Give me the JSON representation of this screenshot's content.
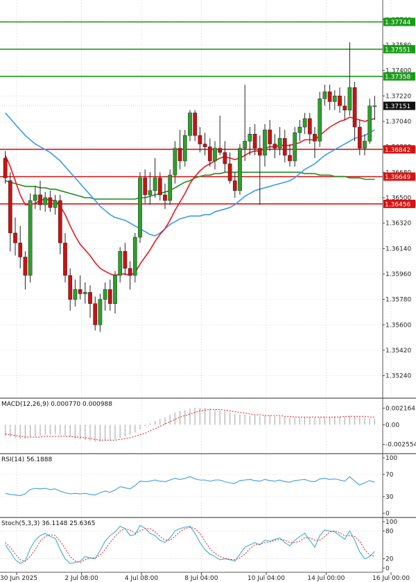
{
  "colors": {
    "up": "#2ca02c",
    "down": "#cc1111",
    "ma_fast": "#e8161c",
    "ma_mid": "#3a9ae8",
    "ma_slow": "#1f8a1f",
    "hline_green": "#1b9c1b",
    "hline_red": "#dd1111",
    "macd_hist": "#b0b0b0",
    "macd_signal": "#e8161c",
    "rsi": "#3a9ae8",
    "stoch_k": "#3ab0d0",
    "stoch_d": "#e8161c",
    "grid": "#d8d8d8",
    "panel_border": "#555555",
    "last_price_bg": "#111111"
  },
  "chart_data": [
    {
      "type": "candlestick",
      "price_axis": {
        "range": [
          1.3513,
          1.3785
        ],
        "ticks": [
          "1.37760",
          "1.37580",
          "1.37400",
          "1.37220",
          "1.37040",
          "1.36860",
          "1.36680",
          "1.36500",
          "1.36320",
          "1.36140",
          "1.35960",
          "1.35780",
          "1.35600",
          "1.35420",
          "1.35240"
        ]
      },
      "time_axis": {
        "labels": [
          "30 Jun 2025",
          "2 Jul 08:00",
          "4 Jul 08:00",
          "8 Jul 04:00",
          "10 Jul 04:00",
          "14 Jul 00:00",
          "16 Jul 00:00"
        ],
        "label_bars": [
          0,
          13,
          25,
          37,
          50,
          62,
          75
        ]
      },
      "last_price": "1.37151",
      "levels": [
        {
          "label": "1.37744",
          "value": 1.37744,
          "color": "green"
        },
        {
          "label": "1.37551",
          "value": 1.37551,
          "color": "green"
        },
        {
          "label": "1.37358",
          "value": 1.37358,
          "color": "green"
        },
        {
          "label": "1.36842",
          "value": 1.36842,
          "color": "red"
        },
        {
          "label": "1.36649",
          "value": 1.36649,
          "color": "red"
        },
        {
          "label": "1.36456",
          "value": 1.36456,
          "color": "red"
        }
      ],
      "candles": [
        [
          1.3678,
          1.3683,
          1.366,
          1.3664
        ],
        [
          1.3662,
          1.3668,
          1.3612,
          1.3625
        ],
        [
          1.3625,
          1.3636,
          1.3609,
          1.3618
        ],
        [
          1.3618,
          1.363,
          1.36,
          1.3608
        ],
        [
          1.3608,
          1.3612,
          1.3585,
          1.3595
        ],
        [
          1.3595,
          1.3653,
          1.359,
          1.3648
        ],
        [
          1.3648,
          1.3658,
          1.3642,
          1.3652
        ],
        [
          1.3652,
          1.3662,
          1.3641,
          1.3645
        ],
        [
          1.3645,
          1.3654,
          1.364,
          1.365
        ],
        [
          1.365,
          1.3655,
          1.364,
          1.3643
        ],
        [
          1.3643,
          1.3652,
          1.3638,
          1.3648
        ],
        [
          1.3648,
          1.3652,
          1.361,
          1.3618
        ],
        [
          1.3618,
          1.3625,
          1.359,
          1.3595
        ],
        [
          1.3595,
          1.36,
          1.357,
          1.3578
        ],
        [
          1.3578,
          1.3592,
          1.3573,
          1.3585
        ],
        [
          1.3585,
          1.3595,
          1.3578,
          1.3582
        ],
        [
          1.3582,
          1.359,
          1.3575,
          1.3583
        ],
        [
          1.3583,
          1.3588,
          1.3565,
          1.3575
        ],
        [
          1.3575,
          1.358,
          1.3556,
          1.356
        ],
        [
          1.356,
          1.3582,
          1.3555,
          1.3578
        ],
        [
          1.3578,
          1.359,
          1.357,
          1.3585
        ],
        [
          1.3585,
          1.3592,
          1.357,
          1.3575
        ],
        [
          1.3575,
          1.3598,
          1.3568,
          1.3595
        ],
        [
          1.3595,
          1.3615,
          1.359,
          1.3612
        ],
        [
          1.3612,
          1.3618,
          1.3595,
          1.36
        ],
        [
          1.36,
          1.3605,
          1.3585,
          1.3595
        ],
        [
          1.3595,
          1.3625,
          1.359,
          1.3622
        ],
        [
          1.3622,
          1.3668,
          1.3618,
          1.3664
        ],
        [
          1.3664,
          1.367,
          1.3646,
          1.3652
        ],
        [
          1.3652,
          1.3668,
          1.3645,
          1.3655
        ],
        [
          1.3655,
          1.3678,
          1.365,
          1.3664
        ],
        [
          1.3664,
          1.3668,
          1.3648,
          1.3652
        ],
        [
          1.3652,
          1.366,
          1.3642,
          1.3648
        ],
        [
          1.3648,
          1.367,
          1.3645,
          1.3666
        ],
        [
          1.3666,
          1.369,
          1.366,
          1.3685
        ],
        [
          1.3685,
          1.3698,
          1.367,
          1.3676
        ],
        [
          1.3676,
          1.3698,
          1.3672,
          1.3694
        ],
        [
          1.3694,
          1.3712,
          1.369,
          1.371
        ],
        [
          1.371,
          1.3712,
          1.369,
          1.3694
        ],
        [
          1.3694,
          1.37,
          1.3682,
          1.3688
        ],
        [
          1.3688,
          1.3696,
          1.368,
          1.3686
        ],
        [
          1.3686,
          1.3692,
          1.3672,
          1.3676
        ],
        [
          1.3676,
          1.369,
          1.367,
          1.3685
        ],
        [
          1.3685,
          1.3708,
          1.368,
          1.3682
        ],
        [
          1.3682,
          1.369,
          1.3668,
          1.3674
        ],
        [
          1.3674,
          1.3682,
          1.366,
          1.3662
        ],
        [
          1.3662,
          1.3668,
          1.365,
          1.3655
        ],
        [
          1.3655,
          1.3688,
          1.3652,
          1.3685
        ],
        [
          1.3685,
          1.373,
          1.3676,
          1.369
        ],
        [
          1.369,
          1.37,
          1.368,
          1.3695
        ],
        [
          1.3695,
          1.3702,
          1.368,
          1.3685
        ],
        [
          1.3685,
          1.3694,
          1.3645,
          1.368
        ],
        [
          1.368,
          1.3702,
          1.3672,
          1.3698
        ],
        [
          1.3698,
          1.3705,
          1.3683,
          1.3688
        ],
        [
          1.3688,
          1.3695,
          1.3678,
          1.3685
        ],
        [
          1.3685,
          1.37,
          1.368,
          1.3692
        ],
        [
          1.3692,
          1.3698,
          1.3675,
          1.368
        ],
        [
          1.368,
          1.3688,
          1.3672,
          1.3676
        ],
        [
          1.3676,
          1.37,
          1.3672,
          1.3696
        ],
        [
          1.3696,
          1.3705,
          1.369,
          1.37
        ],
        [
          1.37,
          1.371,
          1.3695,
          1.3706
        ],
        [
          1.3706,
          1.371,
          1.3688,
          1.3695
        ],
        [
          1.3695,
          1.37,
          1.3678,
          1.369
        ],
        [
          1.369,
          1.3725,
          1.3686,
          1.372
        ],
        [
          1.372,
          1.373,
          1.3715,
          1.3725
        ],
        [
          1.3725,
          1.373,
          1.3712,
          1.3718
        ],
        [
          1.3718,
          1.3726,
          1.3712,
          1.3722
        ],
        [
          1.3722,
          1.3728,
          1.371,
          1.3715
        ],
        [
          1.3715,
          1.3722,
          1.3705,
          1.3712
        ],
        [
          1.3712,
          1.376,
          1.3708,
          1.3728
        ],
        [
          1.3728,
          1.3732,
          1.369,
          1.37
        ],
        [
          1.37,
          1.3705,
          1.368,
          1.3685
        ],
        [
          1.3685,
          1.3695,
          1.368,
          1.369
        ],
        [
          1.369,
          1.372,
          1.3688,
          1.3715
        ],
        [
          1.3715,
          1.3722,
          1.3705,
          1.3715
        ]
      ],
      "ma_fast": [
        1.368,
        1.3672,
        1.3662,
        1.3652,
        1.3645,
        1.3645,
        1.3646,
        1.3648,
        1.3649,
        1.3648,
        1.3648,
        1.3644,
        1.3638,
        1.363,
        1.3623,
        1.3617,
        1.3613,
        1.3609,
        1.3604,
        1.36,
        1.3598,
        1.3596,
        1.3595,
        1.3596,
        1.3596,
        1.3595,
        1.3597,
        1.3603,
        1.3608,
        1.3613,
        1.3619,
        1.3624,
        1.3628,
        1.3634,
        1.3641,
        1.3647,
        1.3653,
        1.366,
        1.3665,
        1.3669,
        1.3672,
        1.3674,
        1.3676,
        1.3678,
        1.3679,
        1.3678,
        1.3677,
        1.3678,
        1.368,
        1.3682,
        1.3683,
        1.3683,
        1.3685,
        1.3686,
        1.3686,
        1.3687,
        1.3687,
        1.3687,
        1.3688,
        1.3689,
        1.3691,
        1.3691,
        1.3691,
        1.3694,
        1.3697,
        1.37,
        1.3702,
        1.3704,
        1.3705,
        1.3707,
        1.3706,
        1.3705,
        1.3704,
        1.3705,
        1.3706
      ],
      "ma_mid": [
        1.371,
        1.3706,
        1.3702,
        1.3698,
        1.3694,
        1.3691,
        1.3688,
        1.3686,
        1.3684,
        1.3682,
        1.3679,
        1.3676,
        1.3672,
        1.3668,
        1.3664,
        1.366,
        1.3656,
        1.3652,
        1.3648,
        1.3644,
        1.3641,
        1.3638,
        1.3636,
        1.3635,
        1.3634,
        1.3632,
        1.363,
        1.3628,
        1.3626,
        1.3624,
        1.3623,
        1.3625,
        1.3628,
        1.3631,
        1.3633,
        1.3635,
        1.3636,
        1.3637,
        1.3637,
        1.3637,
        1.3638,
        1.3638,
        1.364,
        1.3641,
        1.3642,
        1.3643,
        1.3645,
        1.3648,
        1.3651,
        1.3653,
        1.3655,
        1.3656,
        1.3657,
        1.3658,
        1.3659,
        1.366,
        1.3661,
        1.3662,
        1.3664,
        1.3667,
        1.367,
        1.3672,
        1.3674,
        1.3677,
        1.368,
        1.3682,
        1.3684,
        1.3686,
        1.3688,
        1.369,
        1.3692,
        1.3693,
        1.3694,
        1.3696,
        1.3698
      ],
      "ma_slow": [
        1.3662,
        1.3661,
        1.366,
        1.3659,
        1.3658,
        1.3658,
        1.3658,
        1.3657,
        1.3657,
        1.3656,
        1.3656,
        1.3655,
        1.3654,
        1.3653,
        1.3652,
        1.3651,
        1.365,
        1.365,
        1.3649,
        1.3649,
        1.3649,
        1.3649,
        1.3649,
        1.3649,
        1.3649,
        1.3649,
        1.3649,
        1.365,
        1.365,
        1.3651,
        1.3652,
        1.3653,
        1.3654,
        1.3655,
        1.3657,
        1.3659,
        1.3661,
        1.3662,
        1.3664,
        1.3665,
        1.3666,
        1.3666,
        1.3667,
        1.3667,
        1.3668,
        1.3668,
        1.3668,
        1.3668,
        1.3668,
        1.3668,
        1.3668,
        1.3668,
        1.3668,
        1.3668,
        1.3668,
        1.3668,
        1.3668,
        1.3668,
        1.3668,
        1.3668,
        1.3667,
        1.3667,
        1.3667,
        1.3666,
        1.3666,
        1.3666,
        1.3665,
        1.3665,
        1.3665,
        1.3664,
        1.3664,
        1.3664,
        1.3663,
        1.3663,
        1.3663
      ]
    },
    {
      "type": "bar",
      "label": "MACD(12,26,9) 0.000770 0.000988",
      "ticks": [
        "0.002164",
        "0.00",
        "-0.002554"
      ],
      "range": [
        -0.0034,
        0.0031
      ],
      "histogram": [
        -0.0015,
        -0.0016,
        -0.0017,
        -0.0018,
        -0.0018,
        -0.0016,
        -0.0015,
        -0.0014,
        -0.0013,
        -0.0013,
        -0.0012,
        -0.0013,
        -0.0014,
        -0.0016,
        -0.0018,
        -0.0019,
        -0.002,
        -0.0021,
        -0.0022,
        -0.0022,
        -0.0021,
        -0.002,
        -0.0019,
        -0.0017,
        -0.0015,
        -0.0013,
        -0.001,
        -0.0006,
        -0.0002,
        0.0002,
        0.0005,
        0.0008,
        0.001,
        0.0013,
        0.0016,
        0.0018,
        0.0019,
        0.0021,
        0.0022,
        0.0022,
        0.0022,
        0.0021,
        0.002,
        0.0019,
        0.0018,
        0.0016,
        0.0014,
        0.0013,
        0.0013,
        0.0012,
        0.0012,
        0.0011,
        0.0012,
        0.0012,
        0.0011,
        0.0011,
        0.001,
        0.0009,
        0.0009,
        0.0009,
        0.001,
        0.001,
        0.0009,
        0.001,
        0.001,
        0.001,
        0.0011,
        0.0011,
        0.0011,
        0.0012,
        0.0011,
        0.001,
        0.0009,
        0.0008,
        0.0008
      ],
      "signal": [
        -0.0012,
        -0.0013,
        -0.0014,
        -0.0015,
        -0.0016,
        -0.0016,
        -0.0016,
        -0.0016,
        -0.0015,
        -0.0015,
        -0.0015,
        -0.0015,
        -0.0015,
        -0.0015,
        -0.0016,
        -0.0016,
        -0.0017,
        -0.0018,
        -0.0019,
        -0.002,
        -0.002,
        -0.002,
        -0.002,
        -0.0019,
        -0.0018,
        -0.0017,
        -0.0015,
        -0.0013,
        -0.0011,
        -0.0008,
        -0.0005,
        -0.0002,
        0.0001,
        0.0004,
        0.0007,
        0.001,
        0.0012,
        0.0014,
        0.0016,
        0.0018,
        0.0019,
        0.002,
        0.002,
        0.002,
        0.0019,
        0.0018,
        0.0017,
        0.0016,
        0.0015,
        0.0014,
        0.0013,
        0.0013,
        0.0012,
        0.0012,
        0.0012,
        0.0012,
        0.0011,
        0.0011,
        0.001,
        0.001,
        0.001,
        0.001,
        0.001,
        0.001,
        0.001,
        0.001,
        0.001,
        0.001,
        0.0011,
        0.0011,
        0.0011,
        0.0011,
        0.0011,
        0.001,
        0.001
      ]
    },
    {
      "type": "line",
      "label": "RSI(14) 56.1888",
      "ticks": [
        "100",
        "70",
        "30",
        "0"
      ],
      "range": [
        0,
        100
      ],
      "values": [
        36,
        34,
        33,
        32,
        35,
        43,
        45,
        44,
        45,
        43,
        44,
        40,
        37,
        35,
        36,
        35,
        36,
        34,
        33,
        37,
        40,
        38,
        42,
        48,
        46,
        44,
        50,
        58,
        57,
        58,
        60,
        58,
        57,
        60,
        63,
        61,
        63,
        66,
        62,
        60,
        60,
        58,
        60,
        60,
        57,
        55,
        54,
        59,
        60,
        61,
        59,
        58,
        61,
        59,
        58,
        60,
        57,
        56,
        59,
        60,
        61,
        58,
        57,
        62,
        63,
        61,
        62,
        60,
        58,
        66,
        58,
        51,
        55,
        59,
        56
      ]
    },
    {
      "type": "line",
      "label": "Stoch(5,3,3) 36.1148 25.6365",
      "ticks": [
        "100",
        "80",
        "20",
        "0"
      ],
      "range": [
        0,
        100
      ],
      "k": [
        50,
        35,
        18,
        10,
        16,
        42,
        60,
        70,
        75,
        68,
        64,
        40,
        20,
        10,
        12,
        15,
        25,
        22,
        20,
        38,
        58,
        70,
        78,
        90,
        85,
        70,
        72,
        92,
        86,
        75,
        70,
        60,
        55,
        65,
        80,
        85,
        88,
        90,
        75,
        55,
        40,
        30,
        25,
        18,
        20,
        18,
        15,
        30,
        45,
        50,
        55,
        50,
        60,
        58,
        62,
        65,
        55,
        48,
        60,
        68,
        75,
        60,
        45,
        70,
        82,
        80,
        78,
        70,
        62,
        80,
        60,
        35,
        20,
        25,
        36
      ],
      "d": [
        55,
        45,
        30,
        18,
        15,
        25,
        40,
        58,
        68,
        72,
        70,
        58,
        42,
        25,
        15,
        12,
        18,
        22,
        22,
        28,
        40,
        55,
        68,
        80,
        85,
        82,
        75,
        80,
        85,
        85,
        78,
        68,
        60,
        60,
        68,
        78,
        85,
        88,
        85,
        75,
        58,
        42,
        32,
        25,
        21,
        19,
        18,
        22,
        30,
        42,
        50,
        52,
        55,
        56,
        60,
        62,
        60,
        55,
        55,
        58,
        66,
        65,
        60,
        60,
        68,
        78,
        80,
        76,
        70,
        70,
        68,
        58,
        40,
        28,
        26
      ]
    }
  ]
}
